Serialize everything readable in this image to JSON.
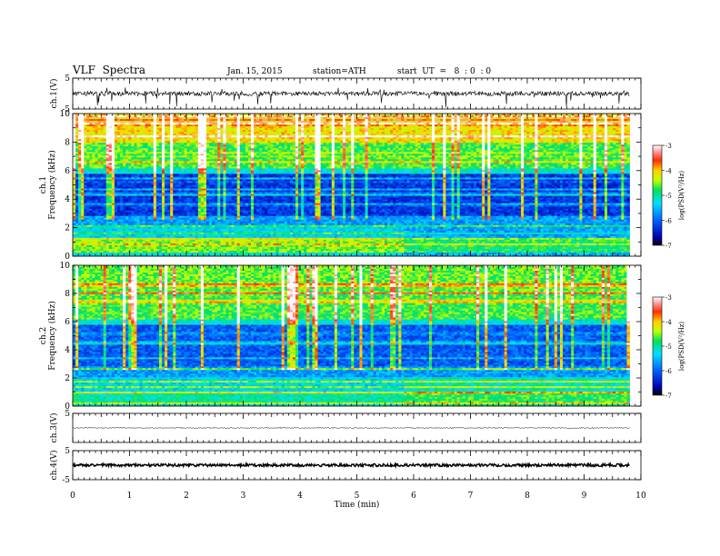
{
  "header": {
    "title": "VLF  Spectra",
    "date": "Jan. 15, 2015",
    "station": "station=ATH",
    "start": "start  UT  =   8  : 0  : 0"
  },
  "chart_data": {
    "type": "heatmap",
    "x": {
      "label": "Time  (min)",
      "range": [
        0,
        10
      ],
      "ticks": [
        "0",
        "1",
        "2",
        "3",
        "4",
        "5",
        "6",
        "7",
        "8",
        "9",
        "10"
      ],
      "data_end": 9.8
    },
    "panels": [
      {
        "id": "ch1-wave",
        "ylabel": "ch.1(V)",
        "ylim": [
          -5,
          5
        ],
        "ticks": [
          "5",
          "-5"
        ]
      },
      {
        "id": "ch1-spec",
        "ylabel1": "ch.1",
        "ylabel2": "Frequency  (kHz)",
        "ylim": [
          0,
          10
        ],
        "ticks": [
          "10",
          "8",
          "6",
          "4",
          "2",
          "0"
        ],
        "colorbar": {
          "range": [
            -7,
            -3
          ],
          "ticks": [
            "-3",
            "-4",
            "-5",
            "-6",
            "-7"
          ],
          "label": "log(PSD(V²/Hz)"
        }
      },
      {
        "id": "ch2-spec",
        "ylabel1": "ch.2",
        "ylabel2": "Frequency  (kHz)",
        "ylim": [
          0,
          10
        ],
        "ticks": [
          "10",
          "8",
          "6",
          "4",
          "2",
          "0"
        ],
        "colorbar": {
          "range": [
            -7,
            -3
          ],
          "ticks": [
            "-3",
            "-4",
            "-5",
            "-6",
            "-7"
          ],
          "label": "log(PSD(V²/Hz)"
        }
      },
      {
        "id": "ch3-wave",
        "ylabel": "ch.3(V)",
        "ylim": [
          -5,
          5
        ],
        "ticks": [
          "5"
        ]
      },
      {
        "id": "ch4-wave",
        "ylabel": "ch.4(V)",
        "ylim": [
          -5,
          5
        ],
        "ticks": [
          "5",
          "-5"
        ]
      }
    ]
  }
}
